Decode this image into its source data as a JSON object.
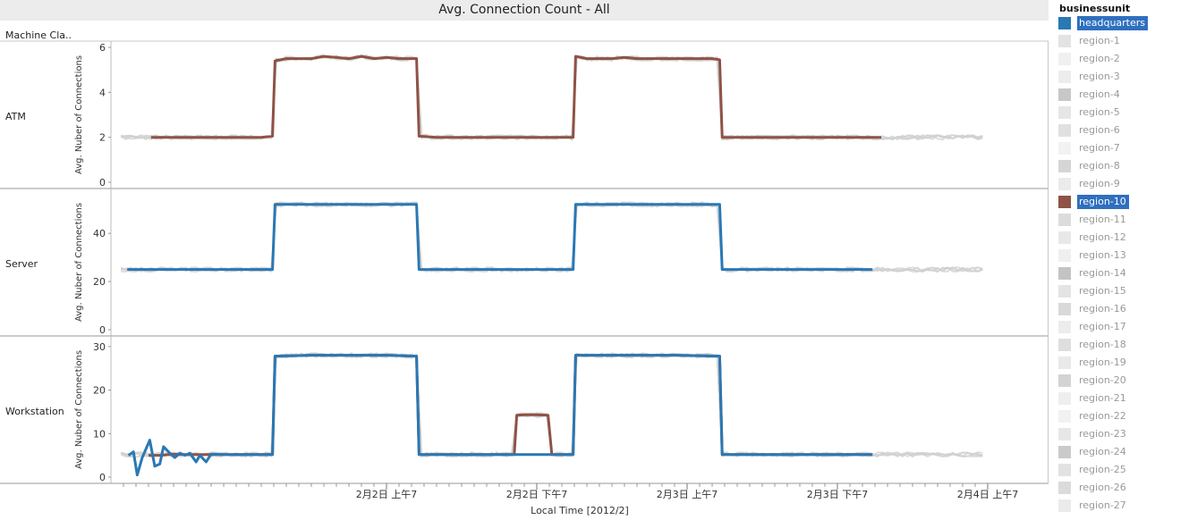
{
  "title": "Avg. Connection Count - All",
  "row_header": "Machine Cla..",
  "legend": {
    "title": "businessunit",
    "items": [
      {
        "label": "headquarters",
        "color": "#2a78b4",
        "selected": true
      },
      {
        "label": "region-1",
        "color": "#e3e3e3",
        "selected": false
      },
      {
        "label": "region-2",
        "color": "#f0f0f0",
        "selected": false
      },
      {
        "label": "region-3",
        "color": "#ededed",
        "selected": false
      },
      {
        "label": "region-4",
        "color": "#c8c8c8",
        "selected": false
      },
      {
        "label": "region-5",
        "color": "#e6e6e6",
        "selected": false
      },
      {
        "label": "region-6",
        "color": "#e0e0e0",
        "selected": false
      },
      {
        "label": "region-7",
        "color": "#f2f2f2",
        "selected": false
      },
      {
        "label": "region-8",
        "color": "#d5d5d5",
        "selected": false
      },
      {
        "label": "region-9",
        "color": "#ebebeb",
        "selected": false
      },
      {
        "label": "region-10",
        "color": "#8f5246",
        "selected": true
      },
      {
        "label": "region-11",
        "color": "#dcdcdc",
        "selected": false
      },
      {
        "label": "region-12",
        "color": "#e8e8e8",
        "selected": false
      },
      {
        "label": "region-13",
        "color": "#efefef",
        "selected": false
      },
      {
        "label": "region-14",
        "color": "#c4c4c4",
        "selected": false
      },
      {
        "label": "region-15",
        "color": "#e4e4e4",
        "selected": false
      },
      {
        "label": "region-16",
        "color": "#d9d9d9",
        "selected": false
      },
      {
        "label": "region-17",
        "color": "#ececec",
        "selected": false
      },
      {
        "label": "region-18",
        "color": "#dedede",
        "selected": false
      },
      {
        "label": "region-19",
        "color": "#e9e9e9",
        "selected": false
      },
      {
        "label": "region-20",
        "color": "#d3d3d3",
        "selected": false
      },
      {
        "label": "region-21",
        "color": "#eeeeee",
        "selected": false
      },
      {
        "label": "region-22",
        "color": "#f1f1f1",
        "selected": false
      },
      {
        "label": "region-23",
        "color": "#e7e7e7",
        "selected": false
      },
      {
        "label": "region-24",
        "color": "#cacaca",
        "selected": false
      },
      {
        "label": "region-25",
        "color": "#e2e2e2",
        "selected": false
      },
      {
        "label": "region-26",
        "color": "#dbdbdb",
        "selected": false
      },
      {
        "label": "region-27",
        "color": "#ebebeb",
        "selected": false
      }
    ]
  },
  "chart_data": {
    "type": "line",
    "xlabel": "Local Time [2012/2]",
    "x_unit": "hours since 2012-02-01 00:00",
    "xlim": [
      9,
      79
    ],
    "x_ticks": [
      {
        "x": 31,
        "label": "2月2日 上午7"
      },
      {
        "x": 43,
        "label": "2月2日 下午7"
      },
      {
        "x": 55,
        "label": "2月3日 上午7"
      },
      {
        "x": 67,
        "label": "2月3日 下午7"
      },
      {
        "x": 79,
        "label": "2月4日 上午7"
      }
    ],
    "panels": [
      {
        "row": "ATM",
        "ylabel": "Avg. Nuber of Connections",
        "ylim": [
          0,
          6
        ],
        "yticks": [
          0,
          2,
          4,
          6
        ],
        "series": [
          {
            "name": "headquarters",
            "color": "#2a78b4",
            "points": []
          },
          {
            "name": "region-10",
            "color": "#8f5246",
            "points": [
              [
                12.2,
                2
              ],
              [
                13,
                2
              ],
              [
                14,
                2
              ],
              [
                15,
                2
              ],
              [
                16,
                2
              ],
              [
                17,
                2
              ],
              [
                18,
                2
              ],
              [
                19,
                2
              ],
              [
                20,
                2
              ],
              [
                21,
                2
              ],
              [
                21.9,
                2.05
              ],
              [
                22.1,
                5.4
              ],
              [
                23,
                5.5
              ],
              [
                24,
                5.5
              ],
              [
                25,
                5.5
              ],
              [
                26,
                5.6
              ],
              [
                27,
                5.55
              ],
              [
                28,
                5.5
              ],
              [
                29,
                5.6
              ],
              [
                30,
                5.5
              ],
              [
                31,
                5.55
              ],
              [
                32,
                5.5
              ],
              [
                33,
                5.5
              ],
              [
                33.4,
                5.5
              ],
              [
                33.6,
                2.05
              ],
              [
                35,
                2
              ],
              [
                36,
                2
              ],
              [
                37,
                2
              ],
              [
                38,
                2
              ],
              [
                39,
                2
              ],
              [
                40,
                2
              ],
              [
                41,
                2
              ],
              [
                42,
                2
              ],
              [
                43,
                2
              ],
              [
                44,
                2
              ],
              [
                45,
                2
              ],
              [
                45.9,
                2
              ],
              [
                46.1,
                5.6
              ],
              [
                47,
                5.5
              ],
              [
                48,
                5.5
              ],
              [
                49,
                5.5
              ],
              [
                50,
                5.55
              ],
              [
                51,
                5.5
              ],
              [
                52,
                5.5
              ],
              [
                53,
                5.5
              ],
              [
                54,
                5.5
              ],
              [
                55,
                5.5
              ],
              [
                56,
                5.5
              ],
              [
                57,
                5.5
              ],
              [
                57.6,
                5.45
              ],
              [
                57.8,
                2
              ],
              [
                59,
                2
              ],
              [
                60,
                2
              ],
              [
                61,
                2
              ],
              [
                62,
                2
              ],
              [
                63,
                2
              ],
              [
                64,
                2
              ],
              [
                65,
                2
              ],
              [
                66,
                2
              ],
              [
                67,
                2
              ],
              [
                68,
                2
              ],
              [
                69,
                2
              ],
              [
                70,
                2
              ],
              [
                70.5,
                2
              ]
            ]
          }
        ]
      },
      {
        "row": "Server",
        "ylabel": "Avg. Nuber of Connections",
        "ylim": [
          0,
          56
        ],
        "yticks": [
          0,
          20,
          40
        ],
        "series": [
          {
            "name": "headquarters",
            "color": "#2a78b4",
            "points": [
              [
                10.3,
                25
              ],
              [
                21.9,
                25
              ],
              [
                22.1,
                52
              ],
              [
                33.4,
                52
              ],
              [
                33.6,
                25
              ],
              [
                45.9,
                25
              ],
              [
                46.1,
                52
              ],
              [
                57.6,
                52
              ],
              [
                57.8,
                25
              ],
              [
                69.8,
                25
              ]
            ]
          },
          {
            "name": "region-10",
            "color": "#8f5246",
            "points": []
          }
        ]
      },
      {
        "row": "Workstation",
        "ylabel": "Avg. Nuber of Connections",
        "ylim": [
          0,
          31
        ],
        "yticks": [
          0,
          10,
          20,
          30
        ],
        "series": [
          {
            "name": "region-10",
            "color": "#8f5246",
            "points": [
              [
                12,
                5
              ],
              [
                13,
                5
              ],
              [
                14,
                5.3
              ],
              [
                15,
                5.2
              ],
              [
                16,
                5.2
              ],
              [
                17,
                5.2
              ],
              [
                18,
                5.2
              ],
              [
                19,
                5.2
              ],
              [
                20,
                5.2
              ],
              [
                21,
                5.2
              ],
              [
                21.9,
                5.2
              ],
              [
                22.1,
                27.8
              ],
              [
                25,
                28
              ],
              [
                28,
                28
              ],
              [
                31,
                28
              ],
              [
                33.4,
                27.8
              ],
              [
                33.6,
                5.2
              ],
              [
                38,
                5.2
              ],
              [
                41.2,
                5.2
              ],
              [
                41.4,
                14.2
              ],
              [
                42,
                14.3
              ],
              [
                43,
                14.3
              ],
              [
                43.9,
                14.2
              ],
              [
                44.2,
                5.2
              ],
              [
                45.9,
                5.2
              ],
              [
                46.1,
                28
              ],
              [
                50,
                28
              ],
              [
                54,
                28
              ],
              [
                57.6,
                27.8
              ],
              [
                57.8,
                5.2
              ],
              [
                62,
                5.2
              ],
              [
                66,
                5.2
              ],
              [
                69.8,
                5.2
              ]
            ]
          },
          {
            "name": "headquarters",
            "color": "#2a78b4",
            "points": [
              [
                10.4,
                5
              ],
              [
                10.8,
                5.8
              ],
              [
                11.1,
                0.5
              ],
              [
                11.5,
                4.5
              ],
              [
                12.1,
                8.5
              ],
              [
                12.5,
                2.5
              ],
              [
                12.9,
                3
              ],
              [
                13.2,
                7
              ],
              [
                13.7,
                5.5
              ],
              [
                14.1,
                4.5
              ],
              [
                14.5,
                5.5
              ],
              [
                14.9,
                5
              ],
              [
                15.3,
                5.5
              ],
              [
                15.8,
                3.5
              ],
              [
                16.1,
                5
              ],
              [
                16.6,
                3.5
              ],
              [
                17,
                5.3
              ],
              [
                18,
                5.2
              ],
              [
                19,
                5.2
              ],
              [
                20,
                5.2
              ],
              [
                21,
                5.2
              ],
              [
                21.9,
                5.2
              ],
              [
                22.1,
                27.8
              ],
              [
                25,
                28
              ],
              [
                28,
                28
              ],
              [
                31,
                28
              ],
              [
                33.4,
                27.8
              ],
              [
                33.6,
                5.2
              ],
              [
                38,
                5.2
              ],
              [
                42,
                5.2
              ],
              [
                45.9,
                5.2
              ],
              [
                46.1,
                28
              ],
              [
                50,
                28
              ],
              [
                54,
                28
              ],
              [
                57.6,
                27.8
              ],
              [
                57.8,
                5.2
              ],
              [
                62,
                5.2
              ],
              [
                66,
                5.2
              ],
              [
                69.8,
                5.2
              ]
            ]
          }
        ]
      }
    ]
  }
}
